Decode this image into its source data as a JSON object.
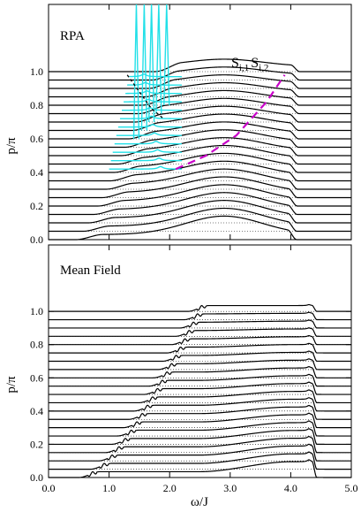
{
  "chart_data": [
    {
      "type": "line",
      "panel": "top",
      "label": "RPA",
      "operator_label": "S",
      "operator_sub1": "i,1",
      "operator_sub2": "i,2",
      "ylabel": "p/π",
      "xlim": [
        0,
        5
      ],
      "ylim": [
        0,
        1.4
      ],
      "yticks": [
        "0.0",
        "0.2",
        "0.4",
        "0.6",
        "0.8",
        "1.0"
      ],
      "ytick_values": [
        0,
        0.2,
        0.4,
        0.6,
        0.8,
        1.0
      ],
      "momentum_curves": 21,
      "curve_step": 0.05,
      "colors": {
        "spectra": "#000000",
        "rpa_spikes": "#22e0e8",
        "dispersion": "#c800c8"
      }
    },
    {
      "type": "line",
      "panel": "bottom",
      "label": "Mean Field",
      "ylabel": "p/π",
      "xlabel": "ω/J",
      "xlim": [
        0,
        5
      ],
      "ylim": [
        0,
        1.4
      ],
      "xticks": [
        "0.0",
        "1.0",
        "2.0",
        "3.0",
        "4.0",
        "5.0"
      ],
      "xtick_values": [
        0,
        1,
        2,
        3,
        4,
        5
      ],
      "yticks": [
        "0.0",
        "0.2",
        "0.4",
        "0.6",
        "0.8",
        "1.0"
      ],
      "ytick_values": [
        0,
        0.2,
        0.4,
        0.6,
        0.8,
        1.0
      ],
      "momentum_curves": 21,
      "curve_step": 0.05
    }
  ]
}
